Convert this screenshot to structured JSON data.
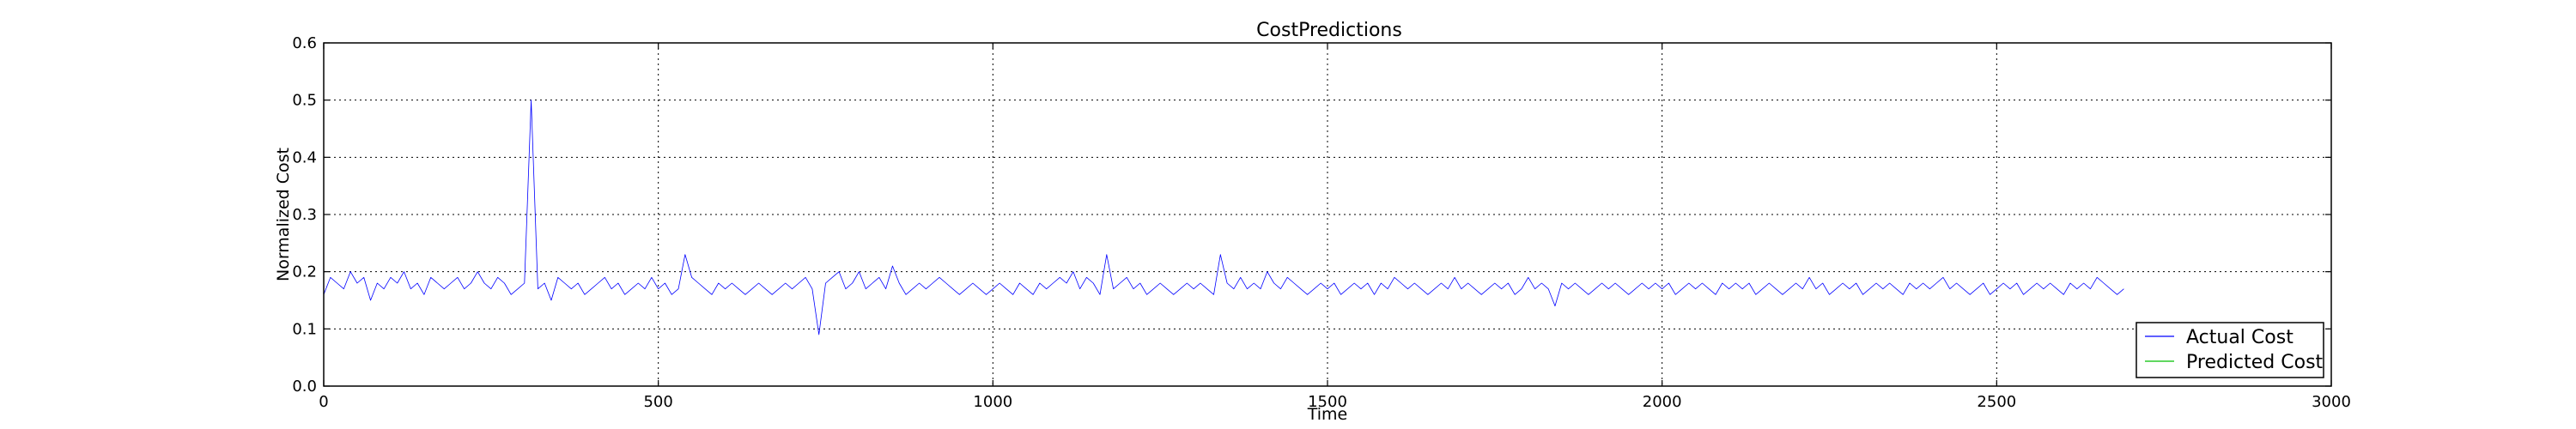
{
  "chart_data": {
    "type": "line",
    "title": "CostPredictions",
    "xlabel": "Time",
    "ylabel": "Normalized Cost",
    "xlim": [
      0,
      3000
    ],
    "ylim": [
      0,
      0.6
    ],
    "xticks": [
      "0",
      "500",
      "1000",
      "1500",
      "2000",
      "2500",
      "3000"
    ],
    "yticks": [
      "0.0",
      "0.1",
      "0.2",
      "0.3",
      "0.4",
      "0.5",
      "0.6"
    ],
    "grid": true,
    "legend_position": "lower-right",
    "series": [
      {
        "name": "Actual Cost",
        "color": "#0000ff",
        "x_step": 10,
        "values": [
          0.16,
          0.19,
          0.18,
          0.17,
          0.2,
          0.18,
          0.19,
          0.15,
          0.18,
          0.17,
          0.19,
          0.18,
          0.2,
          0.17,
          0.18,
          0.16,
          0.19,
          0.18,
          0.17,
          0.18,
          0.19,
          0.17,
          0.18,
          0.2,
          0.18,
          0.17,
          0.19,
          0.18,
          0.16,
          0.17,
          0.18,
          0.5,
          0.17,
          0.18,
          0.15,
          0.19,
          0.18,
          0.17,
          0.18,
          0.16,
          0.17,
          0.18,
          0.19,
          0.17,
          0.18,
          0.16,
          0.17,
          0.18,
          0.17,
          0.19,
          0.17,
          0.18,
          0.16,
          0.17,
          0.23,
          0.19,
          0.18,
          0.17,
          0.16,
          0.18,
          0.17,
          0.18,
          0.17,
          0.16,
          0.17,
          0.18,
          0.17,
          0.16,
          0.17,
          0.18,
          0.17,
          0.18,
          0.19,
          0.17,
          0.09,
          0.18,
          0.19,
          0.2,
          0.17,
          0.18,
          0.2,
          0.17,
          0.18,
          0.19,
          0.17,
          0.21,
          0.18,
          0.16,
          0.17,
          0.18,
          0.17,
          0.18,
          0.19,
          0.18,
          0.17,
          0.16,
          0.17,
          0.18,
          0.17,
          0.16,
          0.17,
          0.18,
          0.17,
          0.16,
          0.18,
          0.17,
          0.16,
          0.18,
          0.17,
          0.18,
          0.19,
          0.18,
          0.2,
          0.17,
          0.19,
          0.18,
          0.16,
          0.23,
          0.17,
          0.18,
          0.19,
          0.17,
          0.18,
          0.16,
          0.17,
          0.18,
          0.17,
          0.16,
          0.17,
          0.18,
          0.17,
          0.18,
          0.17,
          0.16,
          0.23,
          0.18,
          0.17,
          0.19,
          0.17,
          0.18,
          0.17,
          0.2,
          0.18,
          0.17,
          0.19,
          0.18,
          0.17,
          0.16,
          0.17,
          0.18,
          0.17,
          0.18,
          0.16,
          0.17,
          0.18,
          0.17,
          0.18,
          0.16,
          0.18,
          0.17,
          0.19,
          0.18,
          0.17,
          0.18,
          0.17,
          0.16,
          0.17,
          0.18,
          0.17,
          0.19,
          0.17,
          0.18,
          0.17,
          0.16,
          0.17,
          0.18,
          0.17,
          0.18,
          0.16,
          0.17,
          0.19,
          0.17,
          0.18,
          0.17,
          0.14,
          0.18,
          0.17,
          0.18,
          0.17,
          0.16,
          0.17,
          0.18,
          0.17,
          0.18,
          0.17,
          0.16,
          0.17,
          0.18,
          0.17,
          0.18,
          0.17,
          0.18,
          0.16,
          0.17,
          0.18,
          0.17,
          0.18,
          0.17,
          0.16,
          0.18,
          0.17,
          0.18,
          0.17,
          0.18,
          0.16,
          0.17,
          0.18,
          0.17,
          0.16,
          0.17,
          0.18,
          0.17,
          0.19,
          0.17,
          0.18,
          0.16,
          0.17,
          0.18,
          0.17,
          0.18,
          0.16,
          0.17,
          0.18,
          0.17,
          0.18,
          0.17,
          0.16,
          0.18,
          0.17,
          0.18,
          0.17,
          0.18,
          0.19,
          0.17,
          0.18,
          0.17,
          0.16,
          0.17,
          0.18,
          0.16,
          0.17,
          0.18,
          0.17,
          0.18,
          0.16,
          0.17,
          0.18,
          0.17,
          0.18,
          0.17,
          0.16,
          0.18,
          0.17,
          0.18,
          0.17,
          0.19,
          0.18,
          0.17,
          0.16,
          0.17
        ]
      },
      {
        "name": "Predicted Cost",
        "color": "#00bf00",
        "x_step": 10,
        "values": []
      }
    ]
  }
}
